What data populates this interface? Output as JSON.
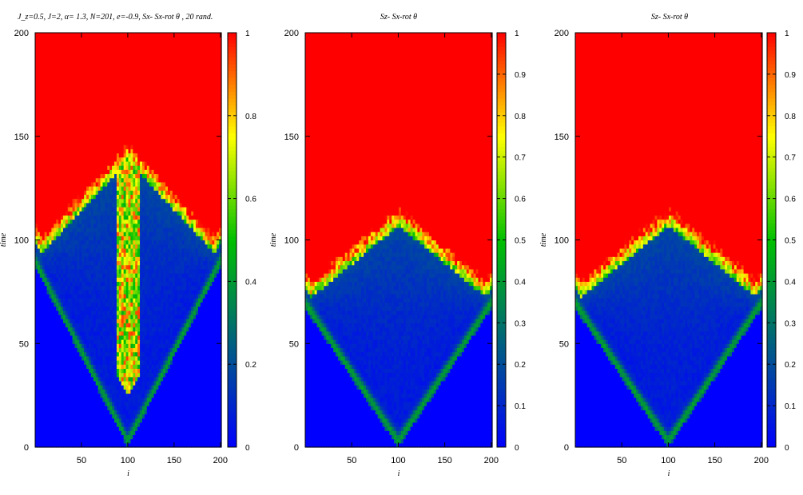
{
  "chart_data": [
    {
      "type": "heatmap",
      "title": "J_z=0.5,  J=2, α= 1.3,   N=201,  e=-0.9, Sx- Sx-rot θ , 20 rand.",
      "xlabel": "i",
      "ylabel": "time",
      "xlim": [
        0,
        201
      ],
      "ylim": [
        0,
        200
      ],
      "xticks": [
        "50",
        "100",
        "150",
        "200"
      ],
      "yticks": [
        "0",
        "50",
        "100",
        "150",
        "200"
      ],
      "colorbar": {
        "min": 0,
        "max": 1,
        "ticks": [
          "0",
          "0.2",
          "0.4",
          "0.6",
          "0.8",
          "1"
        ]
      },
      "colormap": [
        "#0000ff",
        "#006080",
        "#00c000",
        "#ffff00",
        "#ff0000"
      ],
      "field": {
        "front_start_x": 100,
        "front_speed": 1.15,
        "reflect_time": 90,
        "saturation_offset": 12,
        "center_red_channel": true
      }
    },
    {
      "type": "heatmap",
      "title": "Sz- Sx-rot θ",
      "xlabel": "i",
      "ylabel": "time",
      "xlim": [
        0,
        201
      ],
      "ylim": [
        0,
        200
      ],
      "xticks": [
        "50",
        "100",
        "150",
        "200"
      ],
      "yticks": [
        "0",
        "50",
        "100",
        "150",
        "200"
      ],
      "colorbar": {
        "min": 0,
        "max": 1,
        "ticks": [
          "0",
          "0.1",
          "0.2",
          "0.3",
          "0.4",
          "0.5",
          "0.6",
          "0.7",
          "0.8",
          "0.9",
          "1"
        ]
      },
      "colormap": [
        "#0000ff",
        "#006080",
        "#00c000",
        "#ffff00",
        "#ff0000"
      ],
      "field": {
        "front_start_x": 100,
        "front_speed": 1.5,
        "reflect_time": 70,
        "saturation_offset": 10,
        "center_red_channel": false
      }
    },
    {
      "type": "heatmap",
      "title": "Sz- Sx-rot θ",
      "xlabel": "i",
      "ylabel": "time",
      "xlim": [
        0,
        201
      ],
      "ylim": [
        0,
        200
      ],
      "xticks": [
        "50",
        "100",
        "150",
        "200"
      ],
      "yticks": [
        "0",
        "50",
        "100",
        "150",
        "200"
      ],
      "colorbar": {
        "min": 0,
        "max": 1,
        "ticks": [
          "0",
          "0.1",
          "0.2",
          "0.3",
          "0.4",
          "0.5",
          "0.6",
          "0.7",
          "0.8",
          "0.9",
          "1"
        ]
      },
      "colormap": [
        "#0000ff",
        "#006080",
        "#00c000",
        "#ffff00",
        "#ff0000"
      ],
      "field": {
        "front_start_x": 100,
        "front_speed": 1.5,
        "reflect_time": 70,
        "saturation_offset": 10,
        "center_red_channel": false
      }
    }
  ]
}
